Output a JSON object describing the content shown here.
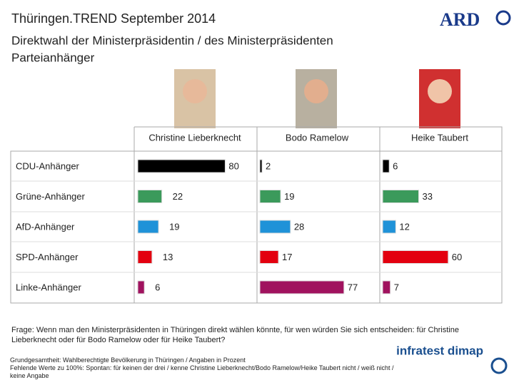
{
  "header": {
    "title": "Thüringen.TREND September 2014",
    "subtitle": "Direktwahl der Ministerpräsidentin / des Ministerpräsidenten",
    "subtitle2": "Parteianhänger",
    "logo": "ARD"
  },
  "chart_data": {
    "type": "bar",
    "categories": [
      "CDU-Anhänger",
      "Grüne-Anhänger",
      "AfD-Anhänger",
      "SPD-Anhänger",
      "Linke-Anhänger"
    ],
    "colors": [
      "#000000",
      "#3b9a5b",
      "#1f92d8",
      "#e3000f",
      "#a0125e"
    ],
    "series": [
      {
        "name": "Christine Lieberknecht",
        "values": [
          80,
          22,
          19,
          13,
          6
        ]
      },
      {
        "name": "Bodo Ramelow",
        "values": [
          2,
          19,
          28,
          17,
          77
        ]
      },
      {
        "name": "Heike Taubert",
        "values": [
          6,
          33,
          12,
          60,
          7
        ]
      }
    ],
    "xlim": [
      0,
      100
    ]
  },
  "footer": {
    "question": "Frage: Wenn man den Ministerpräsidenten in Thüringen direkt wählen könnte, für wen würden Sie sich entscheiden: für Christine Lieberknecht oder für Bodo Ramelow oder für Heike Taubert?",
    "note1": "Grundgesamtheit: Wahlberechtigte Bevölkerung in Thüringen / Angaben in Prozent",
    "note2": "Fehlende Werte zu 100%: Spontan: für keinen der drei / kenne Christine Lieberknecht/Bodo Ramelow/Heike Taubert nicht / weiß nicht / keine Angabe",
    "logo": "infratest dimap"
  }
}
